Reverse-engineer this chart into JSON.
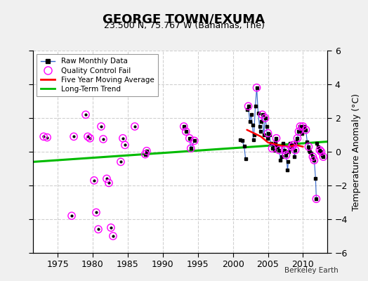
{
  "title": "GEORGE TOWN/EXUMA",
  "subtitle": "23.500 N, 75.767 W (Bahamas, The)",
  "ylabel": "Temperature Anomaly (°C)",
  "credit": "Berkeley Earth",
  "xlim": [
    1971.5,
    2013.5
  ],
  "ylim": [
    -6,
    6
  ],
  "yticks": [
    -6,
    -4,
    -2,
    0,
    2,
    4,
    6
  ],
  "xticks": [
    1975,
    1980,
    1985,
    1990,
    1995,
    2000,
    2005,
    2010
  ],
  "bg_color": "#f0f0f0",
  "plot_bg": "#ffffff",
  "grid_color": "#d0d0d0",
  "trend_x": [
    1971.5,
    2013.5
  ],
  "trend_y": [
    -0.6,
    0.6
  ],
  "moving_avg_x": [
    2002.0,
    2003.0,
    2004.0,
    2005.0,
    2006.0,
    2007.0,
    2008.0,
    2009.0,
    2010.0
  ],
  "moving_avg_y": [
    1.3,
    1.1,
    0.9,
    0.55,
    0.45,
    0.35,
    0.3,
    0.4,
    0.3
  ],
  "connected_segments": [
    {
      "x": [
        1987.5,
        1987.7
      ],
      "y": [
        -0.15,
        0.05
      ]
    },
    {
      "x": [
        1993.0,
        1993.3
      ],
      "y": [
        1.5,
        1.2
      ]
    },
    {
      "x": [
        1993.8,
        1994.0,
        1994.5
      ],
      "y": [
        0.8,
        0.2,
        0.65
      ]
    },
    {
      "x": [
        2001.0,
        2001.3,
        2001.6,
        2001.8
      ],
      "y": [
        0.7,
        0.65,
        0.35,
        -0.4
      ]
    },
    {
      "x": [
        2002.0,
        2002.2,
        2002.4,
        2002.6,
        2002.8,
        2002.9
      ],
      "y": [
        2.5,
        2.7,
        1.8,
        2.2,
        1.6,
        0.7
      ]
    },
    {
      "x": [
        2003.0,
        2003.2,
        2003.4,
        2003.6,
        2003.8,
        2003.9
      ],
      "y": [
        1.0,
        2.7,
        3.8,
        2.3,
        1.5,
        1.2
      ]
    },
    {
      "x": [
        2004.0,
        2004.2,
        2004.4,
        2004.6,
        2004.8,
        2004.9
      ],
      "y": [
        1.8,
        2.2,
        1.0,
        2.0,
        1.5,
        0.8
      ]
    },
    {
      "x": [
        2005.0,
        2005.2,
        2005.4,
        2005.6,
        2005.8,
        2005.9
      ],
      "y": [
        1.1,
        1.0,
        0.5,
        0.2,
        0.4,
        0.1
      ]
    },
    {
      "x": [
        2006.0,
        2006.2,
        2006.4,
        2006.6,
        2006.8
      ],
      "y": [
        0.6,
        0.8,
        0.3,
        0.1,
        -0.5
      ]
    },
    {
      "x": [
        2007.0,
        2007.2,
        2007.4,
        2007.6,
        2007.8,
        2007.9
      ],
      "y": [
        -0.3,
        0.5,
        0.1,
        -0.2,
        -1.1,
        -0.6
      ]
    },
    {
      "x": [
        2008.0,
        2008.2,
        2008.4,
        2008.6,
        2008.8,
        2008.9
      ],
      "y": [
        0.0,
        0.5,
        0.3,
        0.4,
        -0.3,
        0.1
      ]
    },
    {
      "x": [
        2009.0,
        2009.2,
        2009.4,
        2009.6,
        2009.8,
        2009.9
      ],
      "y": [
        0.6,
        0.8,
        1.2,
        1.5,
        1.3,
        1.1
      ]
    },
    {
      "x": [
        2010.0,
        2010.2,
        2010.4,
        2010.6,
        2010.8,
        2010.9
      ],
      "y": [
        1.5,
        1.5,
        1.3,
        0.6,
        0.3,
        0.1
      ]
    },
    {
      "x": [
        2011.0,
        2011.2,
        2011.4,
        2011.6,
        2011.8,
        2011.9
      ],
      "y": [
        0.0,
        -0.1,
        -0.3,
        -0.5,
        -1.6,
        -2.8
      ]
    },
    {
      "x": [
        2012.0,
        2012.2,
        2012.4,
        2012.6,
        2012.8,
        2012.9
      ],
      "y": [
        0.5,
        0.3,
        0.1,
        0.0,
        -0.2,
        -0.3
      ]
    }
  ],
  "qc_fail_isolated": [
    [
      1973.0,
      0.9
    ],
    [
      1973.5,
      0.85
    ],
    [
      1977.0,
      -3.8
    ],
    [
      1977.3,
      0.9
    ],
    [
      1979.0,
      2.2
    ],
    [
      1979.3,
      0.9
    ],
    [
      1979.6,
      0.8
    ],
    [
      1980.2,
      -1.7
    ],
    [
      1980.5,
      -3.6
    ],
    [
      1980.8,
      -4.6
    ],
    [
      1981.2,
      1.5
    ],
    [
      1981.5,
      0.75
    ],
    [
      1982.0,
      -1.6
    ],
    [
      1982.3,
      -1.85
    ],
    [
      1982.6,
      -4.5
    ],
    [
      1982.9,
      -5.0
    ],
    [
      1984.0,
      -0.6
    ],
    [
      1984.3,
      0.8
    ],
    [
      1984.6,
      0.4
    ],
    [
      1986.0,
      1.5
    ],
    [
      1987.5,
      -0.15
    ],
    [
      1987.7,
      0.05
    ],
    [
      1993.0,
      1.5
    ],
    [
      1993.3,
      1.2
    ],
    [
      1993.8,
      0.8
    ],
    [
      1994.0,
      0.2
    ],
    [
      1994.5,
      0.65
    ]
  ],
  "qc_fail_in_segments": [
    [
      2002.2,
      2.7
    ],
    [
      2003.4,
      3.8
    ],
    [
      2004.2,
      2.2
    ],
    [
      2004.6,
      2.0
    ],
    [
      2005.0,
      1.1
    ],
    [
      2005.6,
      0.2
    ],
    [
      2006.2,
      0.8
    ],
    [
      2006.6,
      0.1
    ],
    [
      2007.4,
      0.1
    ],
    [
      2007.6,
      -0.2
    ],
    [
      2008.4,
      0.3
    ],
    [
      2008.6,
      0.4
    ],
    [
      2008.9,
      0.1
    ],
    [
      2009.2,
      0.8
    ],
    [
      2009.4,
      1.2
    ],
    [
      2009.6,
      1.5
    ],
    [
      2010.0,
      1.5
    ],
    [
      2010.4,
      1.3
    ],
    [
      2010.8,
      0.3
    ],
    [
      2011.4,
      -0.3
    ],
    [
      2011.6,
      -0.5
    ],
    [
      2011.9,
      -2.8
    ],
    [
      2012.4,
      0.1
    ],
    [
      2012.6,
      0.0
    ],
    [
      2012.9,
      -0.3
    ]
  ]
}
